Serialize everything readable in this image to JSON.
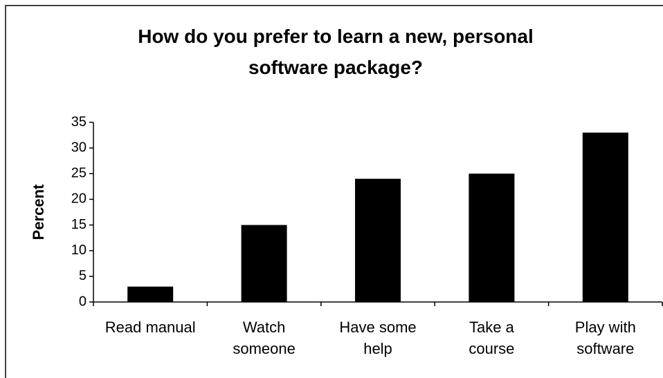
{
  "chart_data": {
    "type": "bar",
    "title": "How do you prefer to learn a new, personal software package?",
    "y_label": "Percent",
    "categories": [
      "Read manual",
      "Watch someone",
      "Have some help",
      "Take a course",
      "Play with software"
    ],
    "values": [
      3,
      15,
      24,
      25,
      33
    ],
    "color": "#000000",
    "ylim": [
      0,
      35
    ],
    "yticks": [
      0,
      5,
      10,
      15,
      20,
      25,
      30,
      35
    ],
    "grid": false
  }
}
